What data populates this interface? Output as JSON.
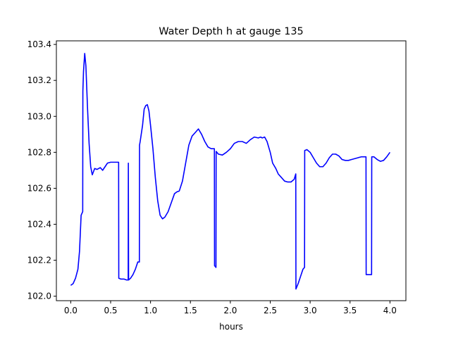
{
  "chart_data": {
    "type": "line",
    "title": "Water Depth h at gauge 135",
    "xlabel": "hours",
    "ylabel": "",
    "xlim": [
      -0.18,
      4.2
    ],
    "ylim": [
      101.975,
      103.42
    ],
    "xticks": [
      0.0,
      0.5,
      1.0,
      1.5,
      2.0,
      2.5,
      3.0,
      3.5,
      4.0
    ],
    "xtick_labels": [
      "0.0",
      "0.5",
      "1.0",
      "1.5",
      "2.0",
      "2.5",
      "3.0",
      "3.5",
      "4.0"
    ],
    "yticks": [
      102.0,
      102.2,
      102.4,
      102.6,
      102.8,
      103.0,
      103.2,
      103.4
    ],
    "ytick_labels": [
      "102.0",
      "102.2",
      "102.4",
      "102.6",
      "102.8",
      "103.0",
      "103.2",
      "103.4"
    ],
    "grid": false,
    "series": [
      {
        "color": "#0000ff",
        "x": [
          0.0,
          0.03,
          0.06,
          0.09,
          0.11,
          0.13,
          0.15,
          0.152,
          0.16,
          0.175,
          0.19,
          0.21,
          0.23,
          0.25,
          0.27,
          0.3,
          0.33,
          0.37,
          0.4,
          0.43,
          0.46,
          0.5,
          0.53,
          0.56,
          0.6,
          0.602,
          0.63,
          0.67,
          0.7,
          0.72,
          0.722,
          0.725,
          0.75,
          0.78,
          0.81,
          0.84,
          0.86,
          0.862,
          0.87,
          0.9,
          0.92,
          0.94,
          0.96,
          0.98,
          1.0,
          1.03,
          1.06,
          1.09,
          1.12,
          1.15,
          1.18,
          1.22,
          1.26,
          1.3,
          1.33,
          1.36,
          1.4,
          1.44,
          1.48,
          1.52,
          1.56,
          1.6,
          1.64,
          1.68,
          1.72,
          1.76,
          1.8,
          1.802,
          1.82,
          1.822,
          1.85,
          1.9,
          1.95,
          2.0,
          2.05,
          2.1,
          2.15,
          2.2,
          2.25,
          2.3,
          2.35,
          2.38,
          2.4,
          2.43,
          2.46,
          2.5,
          2.53,
          2.57,
          2.6,
          2.64,
          2.68,
          2.72,
          2.76,
          2.8,
          2.82,
          2.822,
          2.85,
          2.88,
          2.91,
          2.93,
          2.932,
          2.96,
          3.0,
          3.04,
          3.08,
          3.12,
          3.16,
          3.2,
          3.24,
          3.28,
          3.32,
          3.36,
          3.4,
          3.44,
          3.48,
          3.52,
          3.56,
          3.6,
          3.64,
          3.68,
          3.7,
          3.702,
          3.77,
          3.772,
          3.8,
          3.84,
          3.88,
          3.92,
          3.96,
          4.0
        ],
        "y": [
          102.06,
          102.07,
          102.1,
          102.15,
          102.25,
          102.45,
          102.47,
          103.14,
          103.25,
          103.35,
          103.28,
          103.05,
          102.85,
          102.72,
          102.675,
          102.71,
          102.705,
          102.715,
          102.7,
          102.72,
          102.74,
          102.745,
          102.745,
          102.745,
          102.745,
          102.1,
          102.095,
          102.095,
          102.09,
          102.09,
          102.74,
          102.09,
          102.1,
          102.12,
          102.15,
          102.19,
          102.19,
          102.84,
          102.86,
          102.95,
          103.04,
          103.06,
          103.065,
          103.03,
          102.95,
          102.82,
          102.66,
          102.53,
          102.45,
          102.43,
          102.44,
          102.47,
          102.52,
          102.57,
          102.58,
          102.585,
          102.64,
          102.74,
          102.84,
          102.89,
          102.91,
          102.93,
          102.9,
          102.86,
          102.83,
          102.82,
          102.82,
          102.17,
          102.16,
          102.805,
          102.79,
          102.785,
          102.8,
          102.82,
          102.85,
          102.86,
          102.86,
          102.85,
          102.87,
          102.885,
          102.88,
          102.885,
          102.88,
          102.885,
          102.86,
          102.8,
          102.74,
          102.71,
          102.68,
          102.66,
          102.64,
          102.635,
          102.635,
          102.65,
          102.68,
          102.04,
          102.07,
          102.11,
          102.15,
          102.16,
          102.81,
          102.815,
          102.8,
          102.77,
          102.74,
          102.72,
          102.72,
          102.74,
          102.77,
          102.79,
          102.79,
          102.78,
          102.76,
          102.755,
          102.755,
          102.76,
          102.765,
          102.77,
          102.775,
          102.775,
          102.775,
          102.12,
          102.12,
          102.775,
          102.775,
          102.76,
          102.75,
          102.755,
          102.775,
          102.8
        ]
      }
    ]
  }
}
